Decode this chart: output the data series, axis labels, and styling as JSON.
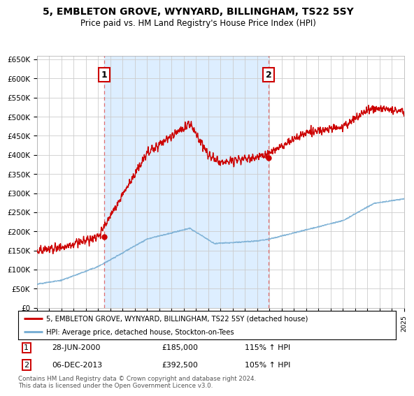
{
  "title": "5, EMBLETON GROVE, WYNYARD, BILLINGHAM, TS22 5SY",
  "subtitle": "Price paid vs. HM Land Registry's House Price Index (HPI)",
  "legend_line1": "5, EMBLETON GROVE, WYNYARD, BILLINGHAM, TS22 5SY (detached house)",
  "legend_line2": "HPI: Average price, detached house, Stockton-on-Tees",
  "annotation1_label": "1",
  "annotation1_date": "28-JUN-2000",
  "annotation1_price": "£185,000",
  "annotation1_hpi": "115% ↑ HPI",
  "annotation2_label": "2",
  "annotation2_date": "06-DEC-2013",
  "annotation2_price": "£392,500",
  "annotation2_hpi": "105% ↑ HPI",
  "footnote": "Contains HM Land Registry data © Crown copyright and database right 2024.\nThis data is licensed under the Open Government Licence v3.0.",
  "red_color": "#cc0000",
  "blue_color": "#7aafd4",
  "shade_color": "#ddeeff",
  "dashed_red": "#e06060",
  "background_color": "#ffffff",
  "grid_color": "#cccccc",
  "ylim": [
    0,
    660000
  ],
  "yticks": [
    0,
    50000,
    100000,
    150000,
    200000,
    250000,
    300000,
    350000,
    400000,
    450000,
    500000,
    550000,
    600000,
    650000
  ],
  "sale1_year": 2000.49,
  "sale1_price": 185000,
  "sale2_year": 2013.92,
  "sale2_price": 392500,
  "xmin": 1995,
  "xmax": 2025
}
